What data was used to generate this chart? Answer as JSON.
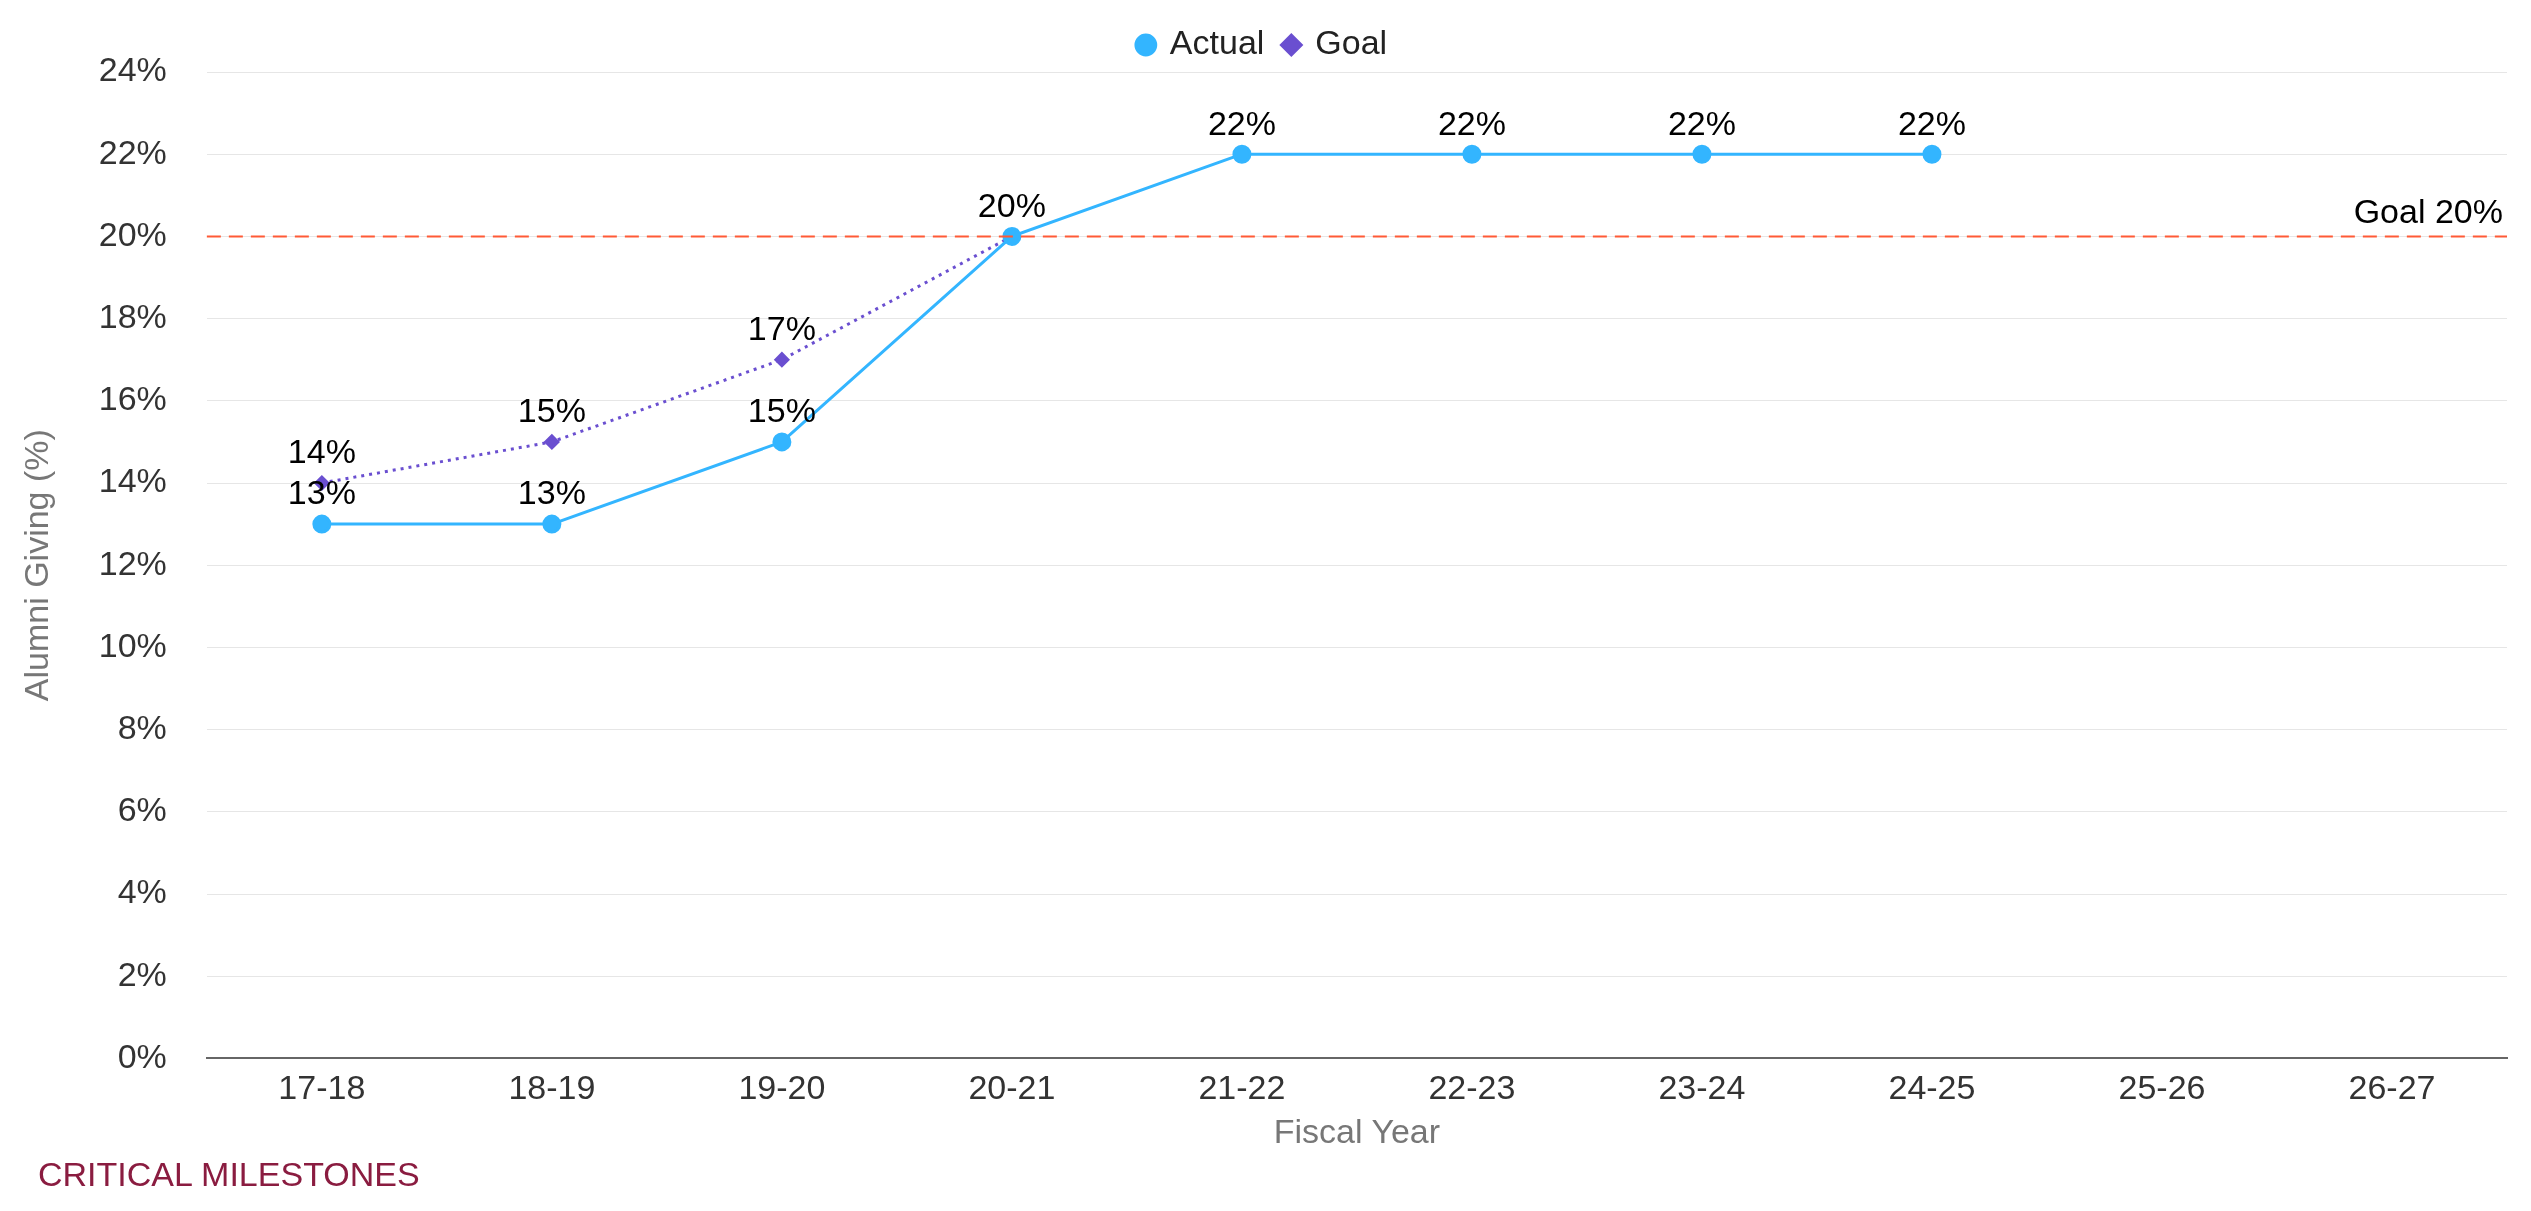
{
  "chart_data": {
    "type": "line",
    "xlabel": "Fiscal Year",
    "ylabel": "Alumni Giving (%)",
    "categories": [
      "17-18",
      "18-19",
      "19-20",
      "20-21",
      "21-22",
      "22-23",
      "23-24",
      "24-25",
      "25-26",
      "26-27"
    ],
    "series": [
      {
        "name": "Actual",
        "color": "#33b5ff",
        "marker": "circle",
        "line_style": "solid",
        "values": [
          13,
          13,
          15,
          20,
          22,
          22,
          22,
          22,
          null,
          null
        ],
        "value_labels": [
          "13%",
          "13%",
          "15%",
          "20%",
          "22%",
          "22%",
          "22%",
          "22%",
          null,
          null
        ]
      },
      {
        "name": "Goal",
        "color": "#6a4fd0",
        "marker": "diamond",
        "line_style": "dotted",
        "values": [
          14,
          15,
          17,
          20,
          null,
          null,
          null,
          null,
          null,
          null
        ],
        "value_labels": [
          "14%",
          "15%",
          "17%",
          null,
          null,
          null,
          null,
          null,
          null,
          null
        ]
      }
    ],
    "ylim": [
      0,
      24
    ],
    "yticks": [
      {
        "value": 0,
        "label": "0%"
      },
      {
        "value": 2,
        "label": "2%"
      },
      {
        "value": 4,
        "label": "4%"
      },
      {
        "value": 6,
        "label": "6%"
      },
      {
        "value": 8,
        "label": "8%"
      },
      {
        "value": 10,
        "label": "10%"
      },
      {
        "value": 12,
        "label": "12%"
      },
      {
        "value": 14,
        "label": "14%"
      },
      {
        "value": 16,
        "label": "16%"
      },
      {
        "value": 18,
        "label": "18%"
      },
      {
        "value": 20,
        "label": "20%"
      },
      {
        "value": 22,
        "label": "22%"
      },
      {
        "value": 24,
        "label": "24%"
      }
    ],
    "grid": "y",
    "legend": "top",
    "ref_lines": [
      {
        "axis": "y",
        "value": 20,
        "label": "Goal 20%",
        "color": "#ff5a36",
        "line_style": "dashed"
      }
    ],
    "annotations": [
      "CRITICAL MILESTONES"
    ]
  }
}
